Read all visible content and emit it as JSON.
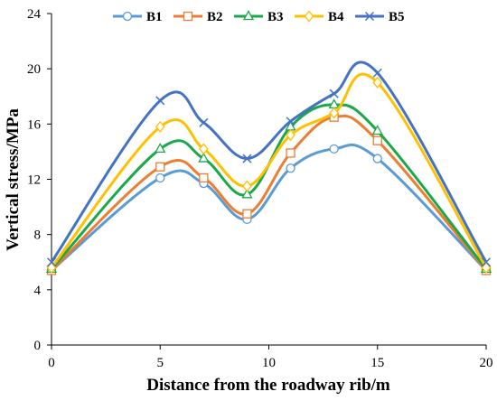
{
  "chart_data": {
    "type": "line",
    "smooth": true,
    "title": "",
    "xlabel": "Distance from the roadway rib/m",
    "ylabel": "Vertical stress/MPa",
    "xlim": [
      0,
      20
    ],
    "ylim": [
      0,
      24
    ],
    "xticks": [
      "0",
      "5",
      "10",
      "15",
      "20"
    ],
    "yticks": [
      "0",
      "4",
      "8",
      "12",
      "16",
      "20",
      "24"
    ],
    "grid": false,
    "legend_position": "top",
    "x": [
      0,
      5,
      7,
      9,
      11,
      13,
      15,
      20
    ],
    "series": [
      {
        "name": "B1",
        "color": "#5b9bd5",
        "marker": "circle",
        "values": [
          5.4,
          12.1,
          11.7,
          9.1,
          12.8,
          14.2,
          13.5,
          5.4
        ]
      },
      {
        "name": "B2",
        "color": "#ed7d31",
        "marker": "square",
        "values": [
          5.4,
          12.9,
          12.1,
          9.5,
          13.9,
          16.5,
          14.8,
          5.4
        ]
      },
      {
        "name": "B3",
        "color": "#1aa84a",
        "marker": "triangle",
        "values": [
          5.5,
          14.2,
          13.5,
          10.9,
          15.8,
          17.4,
          15.5,
          5.5
        ]
      },
      {
        "name": "B4",
        "color": "#ffc000",
        "marker": "diamond",
        "values": [
          5.6,
          15.8,
          14.2,
          11.5,
          15.2,
          16.8,
          19.0,
          5.6
        ]
      },
      {
        "name": "B5",
        "color": "#4472c4",
        "marker": "x",
        "values": [
          6.0,
          17.7,
          16.1,
          13.5,
          16.2,
          18.2,
          19.7,
          6.0
        ]
      }
    ]
  }
}
